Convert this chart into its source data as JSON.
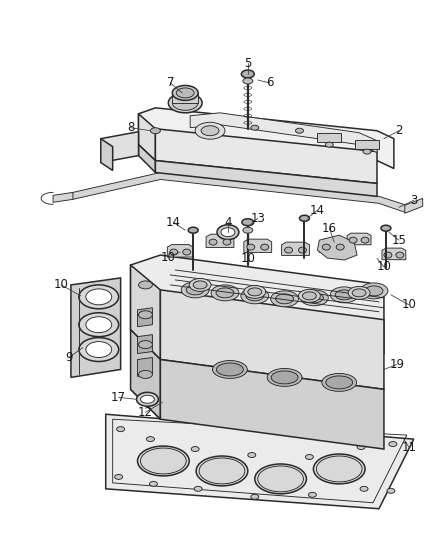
{
  "background_color": "#ffffff",
  "line_color": "#2a2a2a",
  "label_color": "#1a1a1a",
  "figure_width": 4.38,
  "figure_height": 5.33,
  "dpi": 100,
  "label_fontsize": 8.5,
  "lw_main": 1.1,
  "lw_thin": 0.65,
  "fill_light": "#f0eeec",
  "fill_mid": "#e0dedd",
  "fill_dark": "#c8c5c2",
  "fill_metal": "#d8d5d2",
  "fill_shadow": "#b8b5b2"
}
